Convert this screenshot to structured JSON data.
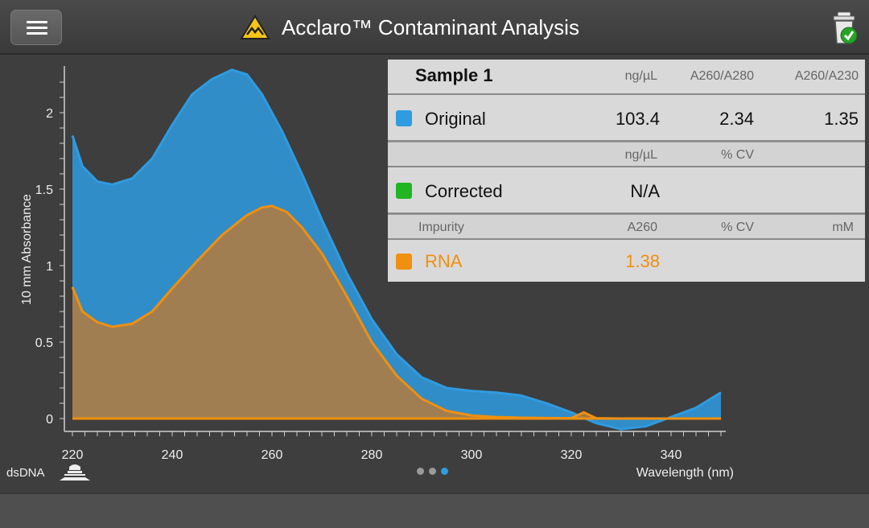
{
  "header": {
    "title": "Acclaro™ Contaminant Analysis",
    "menu_icon": "hamburger-menu-icon",
    "logo_icon": "acclaro-triangle-icon",
    "action_icon": "trash-check-icon"
  },
  "panel": {
    "sample_title": "Sample 1",
    "original": {
      "headers": [
        "ng/µL",
        "A260/A280",
        "A260/A230"
      ],
      "label": "Original",
      "color": "#2f9be0",
      "values": [
        "103.4",
        "2.34",
        "1.35"
      ]
    },
    "corrected": {
      "headers": [
        "ng/µL",
        "% CV"
      ],
      "label": "Corrected",
      "color": "#22b522",
      "values": [
        "N/A"
      ]
    },
    "impurity": {
      "headers": [
        "Impurity",
        "A260",
        "% CV",
        "mM"
      ],
      "label": "RNA",
      "color": "#f0900e",
      "values": [
        "1.38"
      ]
    }
  },
  "chart_data": {
    "type": "area",
    "xlabel": "Wavelength (nm)",
    "ylabel": "10 mm Absorbance",
    "xlim": [
      220,
      350
    ],
    "ylim": [
      -0.1,
      2.3
    ],
    "x_ticks": [
      220,
      240,
      260,
      280,
      300,
      320,
      340
    ],
    "y_ticks": [
      0,
      0.5,
      1,
      1.5,
      2
    ],
    "x_tick_labels": [
      "220",
      "240",
      "260",
      "280",
      "300",
      "320",
      "340"
    ],
    "y_tick_labels": [
      "0",
      "0.5",
      "1",
      "1.5",
      "2"
    ],
    "series": [
      {
        "name": "Original",
        "color": "#2f9be0",
        "x": [
          220,
          222,
          225,
          228,
          232,
          236,
          240,
          244,
          248,
          252,
          255,
          258,
          262,
          266,
          270,
          275,
          280,
          285,
          290,
          295,
          300,
          305,
          310,
          315,
          320,
          325,
          330,
          335,
          340,
          345,
          350
        ],
        "y": [
          1.85,
          1.65,
          1.55,
          1.53,
          1.57,
          1.7,
          1.92,
          2.12,
          2.22,
          2.28,
          2.25,
          2.12,
          1.88,
          1.6,
          1.3,
          0.95,
          0.65,
          0.42,
          0.27,
          0.2,
          0.18,
          0.17,
          0.15,
          0.1,
          0.04,
          -0.03,
          -0.07,
          -0.05,
          0.01,
          0.07,
          0.17
        ]
      },
      {
        "name": "RNA",
        "color": "#f0900e",
        "x": [
          220,
          222,
          225,
          228,
          232,
          236,
          240,
          245,
          250,
          255,
          258,
          260,
          263,
          266,
          270,
          275,
          280,
          285,
          290,
          295,
          300,
          305,
          310,
          315,
          320,
          322.5,
          325,
          330,
          340,
          350
        ],
        "y": [
          0.86,
          0.7,
          0.63,
          0.6,
          0.62,
          0.7,
          0.85,
          1.03,
          1.2,
          1.33,
          1.38,
          1.39,
          1.35,
          1.25,
          1.08,
          0.8,
          0.5,
          0.28,
          0.13,
          0.05,
          0.02,
          0.01,
          0.005,
          0.003,
          0.002,
          0.04,
          0.002,
          0.0,
          0.0,
          0.0
        ]
      }
    ]
  },
  "pager": {
    "dot_colors": [
      "#9a9a9a",
      "#9a9a9a",
      "#2f9be0"
    ]
  },
  "footer": {
    "mode_label": "dsDNA",
    "mode_icon": "sample-pedestal-icon"
  }
}
